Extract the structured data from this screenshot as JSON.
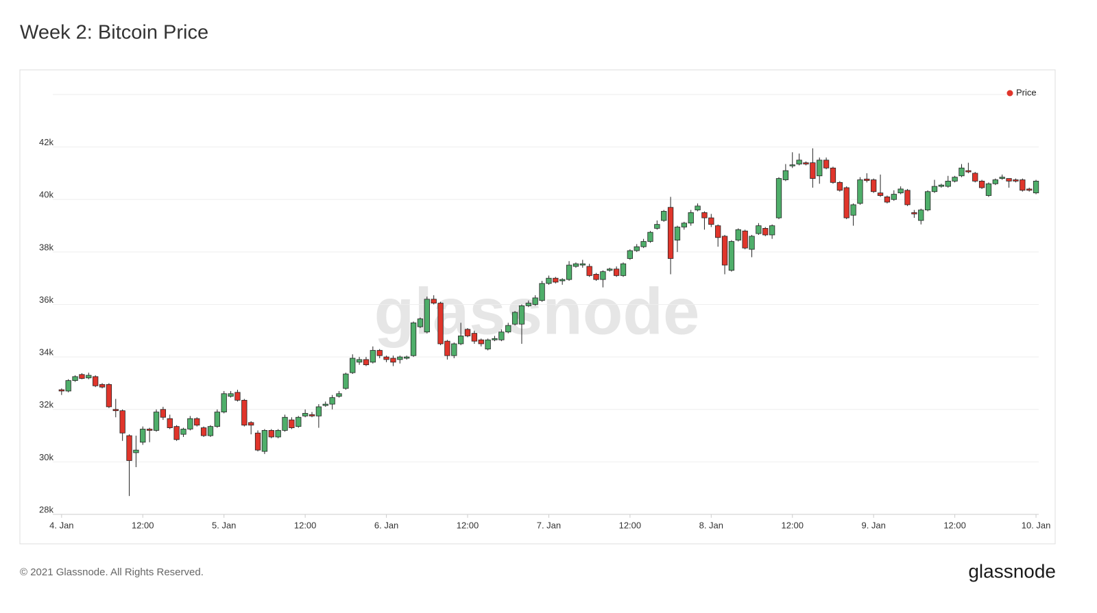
{
  "chart_data": {
    "type": "candlestick",
    "title": "Week 2: Bitcoin Price",
    "series": [
      {
        "name": "Price",
        "color": "#e0352b",
        "up_color": "#4fae6a",
        "down_color": "#e0352b",
        "ohlc": [
          [
            32750,
            32800,
            32550,
            32700
          ],
          [
            32700,
            33150,
            32650,
            33100
          ],
          [
            33100,
            33300,
            33050,
            33250
          ],
          [
            33330,
            33380,
            33150,
            33180
          ],
          [
            33200,
            33400,
            33150,
            33300
          ],
          [
            33250,
            33300,
            32850,
            32900
          ],
          [
            32950,
            33000,
            32800,
            32850
          ],
          [
            32950,
            33000,
            32050,
            32100
          ],
          [
            32000,
            32400,
            31700,
            31950
          ],
          [
            31950,
            32000,
            30800,
            31100
          ],
          [
            31000,
            31050,
            28700,
            30050
          ],
          [
            30350,
            31000,
            29800,
            30450
          ],
          [
            30750,
            31350,
            30650,
            31250
          ],
          [
            31250,
            31300,
            30750,
            31200
          ],
          [
            31200,
            32000,
            31150,
            31900
          ],
          [
            32000,
            32100,
            31600,
            31700
          ],
          [
            31650,
            31800,
            31250,
            31300
          ],
          [
            31350,
            31400,
            30800,
            30850
          ],
          [
            31050,
            31300,
            30950,
            31250
          ],
          [
            31250,
            31750,
            31200,
            31650
          ],
          [
            31650,
            31700,
            31350,
            31400
          ],
          [
            31300,
            31350,
            30950,
            31000
          ],
          [
            31000,
            31400,
            30950,
            31350
          ],
          [
            31350,
            32000,
            31300,
            31900
          ],
          [
            31900,
            32700,
            31850,
            32600
          ],
          [
            32500,
            32700,
            32450,
            32600
          ],
          [
            32650,
            32750,
            32300,
            32350
          ],
          [
            32350,
            32400,
            31350,
            31400
          ],
          [
            31500,
            31550,
            31050,
            31400
          ],
          [
            31100,
            31200,
            30400,
            30450
          ],
          [
            30400,
            31250,
            30300,
            31200
          ],
          [
            31200,
            31250,
            30900,
            30950
          ],
          [
            30950,
            31250,
            30900,
            31200
          ],
          [
            31200,
            31800,
            31150,
            31700
          ],
          [
            31600,
            31700,
            31250,
            31300
          ],
          [
            31350,
            31750,
            31300,
            31700
          ],
          [
            31750,
            32000,
            31700,
            31850
          ],
          [
            31800,
            31900,
            31700,
            31750
          ],
          [
            31750,
            32200,
            31300,
            32100
          ],
          [
            32150,
            32300,
            32100,
            32200
          ],
          [
            32200,
            32550,
            32000,
            32450
          ],
          [
            32500,
            32700,
            32450,
            32600
          ],
          [
            32800,
            33400,
            32750,
            33350
          ],
          [
            33400,
            34100,
            33350,
            33950
          ],
          [
            33800,
            34000,
            33700,
            33900
          ],
          [
            33900,
            34000,
            33650,
            33700
          ],
          [
            33800,
            34400,
            33750,
            34250
          ],
          [
            34250,
            34300,
            33950,
            34050
          ],
          [
            34000,
            34050,
            33800,
            33900
          ],
          [
            33950,
            34050,
            33650,
            33800
          ],
          [
            33900,
            34050,
            33750,
            34000
          ],
          [
            33950,
            34050,
            33900,
            34000
          ],
          [
            34050,
            35350,
            34000,
            35300
          ],
          [
            35150,
            35500,
            35100,
            35450
          ],
          [
            34950,
            36300,
            34900,
            36200
          ],
          [
            36200,
            36350,
            36000,
            36050
          ],
          [
            36050,
            36100,
            34450,
            34500
          ],
          [
            34600,
            34650,
            33900,
            34050
          ],
          [
            34050,
            34550,
            33950,
            34500
          ],
          [
            34500,
            35300,
            34450,
            34800
          ],
          [
            35050,
            35100,
            34750,
            34800
          ],
          [
            34900,
            35000,
            34500,
            34600
          ],
          [
            34650,
            34700,
            34400,
            34500
          ],
          [
            34300,
            34700,
            34250,
            34650
          ],
          [
            34650,
            34800,
            34600,
            34700
          ],
          [
            34650,
            35050,
            34600,
            34950
          ],
          [
            34950,
            35300,
            34900,
            35200
          ],
          [
            35250,
            35750,
            35200,
            35700
          ],
          [
            35250,
            36000,
            34500,
            35950
          ],
          [
            35950,
            36150,
            35900,
            36050
          ],
          [
            36000,
            36350,
            35950,
            36250
          ],
          [
            36150,
            36900,
            36100,
            36800
          ],
          [
            36800,
            37100,
            36750,
            37000
          ],
          [
            37000,
            37050,
            36800,
            36850
          ],
          [
            36900,
            37000,
            36750,
            36950
          ],
          [
            36950,
            37650,
            36900,
            37500
          ],
          [
            37450,
            37600,
            37400,
            37550
          ],
          [
            37500,
            37700,
            37400,
            37550
          ],
          [
            37450,
            37550,
            37050,
            37100
          ],
          [
            37150,
            37200,
            36900,
            36950
          ],
          [
            36950,
            37300,
            36650,
            37250
          ],
          [
            37300,
            37400,
            37250,
            37350
          ],
          [
            37350,
            37450,
            37050,
            37100
          ],
          [
            37100,
            37600,
            37050,
            37550
          ],
          [
            37750,
            38100,
            37700,
            38050
          ],
          [
            38050,
            38300,
            38000,
            38200
          ],
          [
            38200,
            38500,
            38150,
            38400
          ],
          [
            38400,
            38800,
            38350,
            38750
          ],
          [
            38900,
            39200,
            38850,
            39050
          ],
          [
            39200,
            39600,
            39150,
            39550
          ],
          [
            39700,
            40100,
            37150,
            37750
          ],
          [
            38450,
            39000,
            38000,
            38950
          ],
          [
            38950,
            39150,
            38850,
            39100
          ],
          [
            39100,
            39600,
            39000,
            39500
          ],
          [
            39600,
            39850,
            39550,
            39750
          ],
          [
            39500,
            39550,
            38850,
            39300
          ],
          [
            39300,
            39450,
            38950,
            39050
          ],
          [
            39000,
            39050,
            38200,
            38550
          ],
          [
            38600,
            38650,
            37150,
            37500
          ],
          [
            37300,
            38450,
            37250,
            38400
          ],
          [
            38450,
            38900,
            38400,
            38850
          ],
          [
            38800,
            38850,
            38100,
            38150
          ],
          [
            38100,
            38650,
            37800,
            38600
          ],
          [
            38700,
            39100,
            38650,
            39000
          ],
          [
            38900,
            38950,
            38600,
            38650
          ],
          [
            38650,
            39050,
            38500,
            39000
          ],
          [
            39300,
            40850,
            39250,
            40800
          ],
          [
            40750,
            41350,
            40700,
            41100
          ],
          [
            41280,
            41800,
            41200,
            41320
          ],
          [
            41350,
            41750,
            41300,
            41500
          ],
          [
            41400,
            41450,
            41300,
            41350
          ],
          [
            41400,
            41950,
            40450,
            40800
          ],
          [
            40900,
            41600,
            40600,
            41500
          ],
          [
            41500,
            41600,
            41150,
            41200
          ],
          [
            41200,
            41250,
            40600,
            40650
          ],
          [
            40650,
            40700,
            40300,
            40350
          ],
          [
            40450,
            40500,
            39250,
            39300
          ],
          [
            39400,
            39850,
            39000,
            39800
          ],
          [
            39850,
            40850,
            39800,
            40750
          ],
          [
            40780,
            41000,
            40650,
            40720
          ],
          [
            40750,
            40800,
            40250,
            40300
          ],
          [
            40250,
            40950,
            40100,
            40150
          ],
          [
            40100,
            40150,
            39850,
            39900
          ],
          [
            40000,
            40350,
            39950,
            40200
          ],
          [
            40250,
            40500,
            40200,
            40400
          ],
          [
            40350,
            40400,
            39750,
            39800
          ],
          [
            39500,
            39600,
            39300,
            39450
          ],
          [
            39200,
            39650,
            39050,
            39600
          ],
          [
            39600,
            40350,
            39550,
            40300
          ],
          [
            40300,
            40750,
            40250,
            40500
          ],
          [
            40500,
            40600,
            40450,
            40550
          ],
          [
            40500,
            40900,
            40450,
            40700
          ],
          [
            40700,
            40900,
            40650,
            40850
          ],
          [
            40900,
            41350,
            40850,
            41200
          ],
          [
            41100,
            41400,
            41000,
            41050
          ],
          [
            41000,
            41050,
            40650,
            40700
          ],
          [
            40700,
            40750,
            40400,
            40450
          ],
          [
            40150,
            40650,
            40100,
            40600
          ],
          [
            40600,
            40800,
            40550,
            40750
          ],
          [
            40800,
            40950,
            40750,
            40850
          ],
          [
            40800,
            40800,
            40450,
            40700
          ],
          [
            40750,
            40800,
            40650,
            40700
          ],
          [
            40750,
            40800,
            40300,
            40350
          ],
          [
            40400,
            40450,
            40300,
            40350
          ],
          [
            40250,
            40750,
            40200,
            40700
          ]
        ]
      }
    ],
    "xlim": [
      -1.3,
      144.4
    ],
    "xticks": [
      {
        "value": 0,
        "label": "4. Jan"
      },
      {
        "value": 12,
        "label": "12:00"
      },
      {
        "value": 24,
        "label": "5. Jan"
      },
      {
        "value": 36,
        "label": "12:00"
      },
      {
        "value": 48,
        "label": "6. Jan"
      },
      {
        "value": 60,
        "label": "12:00"
      },
      {
        "value": 72,
        "label": "7. Jan"
      },
      {
        "value": 84,
        "label": "12:00"
      },
      {
        "value": 96,
        "label": "8. Jan"
      },
      {
        "value": 108,
        "label": "12:00"
      },
      {
        "value": 120,
        "label": "9. Jan"
      },
      {
        "value": 132,
        "label": "12:00"
      },
      {
        "value": 144,
        "label": "10. Jan"
      }
    ],
    "ylim": [
      28000,
      44000
    ],
    "yticks": [
      {
        "value": 28000,
        "label": "28k"
      },
      {
        "value": 30000,
        "label": "30k"
      },
      {
        "value": 32000,
        "label": "32k"
      },
      {
        "value": 34000,
        "label": "34k"
      },
      {
        "value": 36000,
        "label": "36k"
      },
      {
        "value": 38000,
        "label": "38k"
      },
      {
        "value": 40000,
        "label": "40k"
      },
      {
        "value": 42000,
        "label": "42k"
      }
    ],
    "grid": true,
    "legend": "top-right",
    "watermark": "glassnode"
  },
  "footer": {
    "copyright": "© 2021 Glassnode. All Rights Reserved.",
    "logo": "glassnode"
  }
}
